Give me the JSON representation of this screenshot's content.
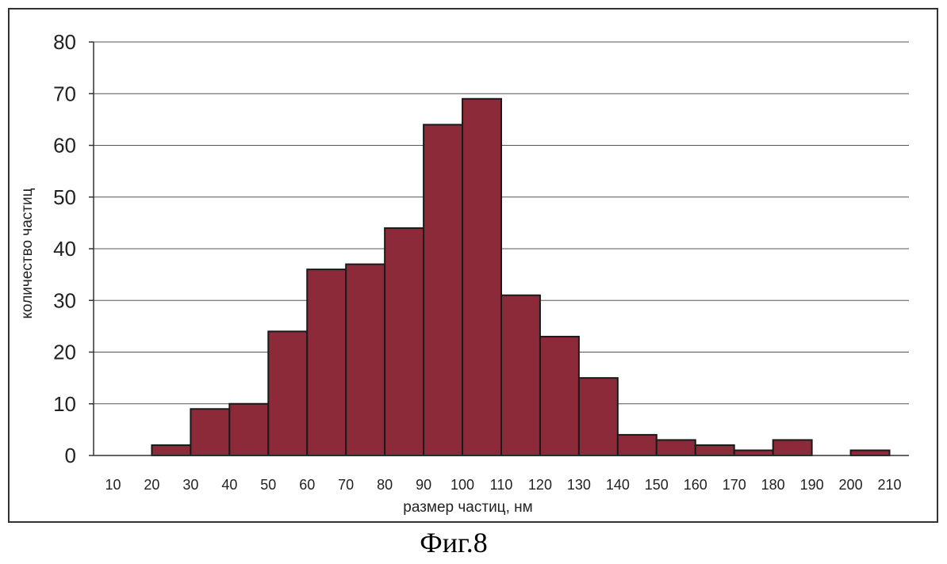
{
  "chart_data": {
    "type": "bar",
    "histogram": true,
    "bins": [
      [
        10,
        20
      ],
      [
        20,
        30
      ],
      [
        30,
        40
      ],
      [
        40,
        50
      ],
      [
        50,
        60
      ],
      [
        60,
        70
      ],
      [
        70,
        80
      ],
      [
        80,
        90
      ],
      [
        90,
        100
      ],
      [
        100,
        110
      ],
      [
        110,
        120
      ],
      [
        120,
        130
      ],
      [
        130,
        140
      ],
      [
        140,
        150
      ],
      [
        150,
        160
      ],
      [
        160,
        170
      ],
      [
        170,
        180
      ],
      [
        180,
        190
      ],
      [
        190,
        200
      ],
      [
        200,
        210
      ]
    ],
    "values": [
      0,
      2,
      9,
      10,
      24,
      36,
      37,
      44,
      64,
      69,
      31,
      23,
      15,
      4,
      3,
      2,
      1,
      3,
      0,
      1
    ],
    "x_tick_labels": [
      "10",
      "20",
      "30",
      "40",
      "50",
      "60",
      "70",
      "80",
      "90",
      "100",
      "110",
      "120",
      "130",
      "140",
      "150",
      "160",
      "170",
      "180",
      "190",
      "200",
      "210"
    ],
    "y_tick_labels": [
      "0",
      "10",
      "20",
      "30",
      "40",
      "50",
      "60",
      "70",
      "80"
    ],
    "xlabel": "размер частиц, нм",
    "ylabel": "количество частиц",
    "ylim": [
      0,
      80
    ],
    "grid": true,
    "bar_color": "#8c2a3a",
    "bar_edge_color": "#1a1a1a"
  },
  "caption": "Фиг.8"
}
